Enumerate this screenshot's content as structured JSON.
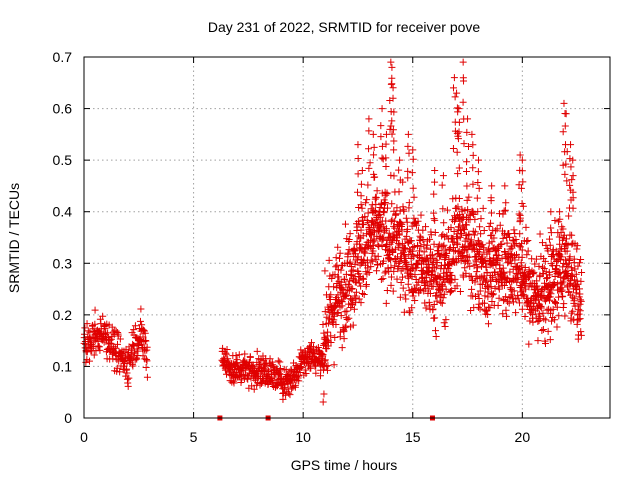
{
  "chart_data": {
    "type": "scatter",
    "title": "Day 231 of 2022, SRMTID for receiver pove",
    "xlabel": "GPS time / hours",
    "ylabel": "SRMTID / TECUs",
    "xlim": [
      0,
      24
    ],
    "ylim": [
      0,
      0.7
    ],
    "xticks": [
      0,
      5,
      10,
      15,
      20
    ],
    "yticks": [
      0,
      0.1,
      0.2,
      0.3,
      0.4,
      0.5,
      0.6,
      0.7
    ],
    "xtick_labels": [
      "0",
      "5",
      "10",
      "15",
      "20"
    ],
    "ytick_labels": [
      "0",
      "0.1",
      "0.2",
      "0.3",
      "0.4",
      "0.5",
      "0.6",
      "0.7"
    ],
    "grid": true,
    "marker": "+",
    "color": "#e00000",
    "zero_markers_x": [
      6.2,
      8.4,
      15.9
    ],
    "series": [
      {
        "name": "SRMTID",
        "segments": [
          {
            "start": 0.0,
            "end": 2.9,
            "step": 0.012,
            "anchors": [
              [
                0.0,
                0.15
              ],
              [
                0.3,
                0.14
              ],
              [
                0.6,
                0.16
              ],
              [
                0.9,
                0.17
              ],
              [
                1.3,
                0.14
              ],
              [
                1.7,
                0.12
              ],
              [
                2.0,
                0.1
              ],
              [
                2.3,
                0.15
              ],
              [
                2.6,
                0.16
              ],
              [
                2.9,
                0.12
              ]
            ],
            "spread": 0.035
          },
          {
            "start": 6.3,
            "end": 10.9,
            "step": 0.012,
            "anchors": [
              [
                6.3,
                0.12
              ],
              [
                6.8,
                0.09
              ],
              [
                7.3,
                0.1
              ],
              [
                7.8,
                0.09
              ],
              [
                8.3,
                0.09
              ],
              [
                8.8,
                0.08
              ],
              [
                9.2,
                0.07
              ],
              [
                9.6,
                0.08
              ],
              [
                10.0,
                0.12
              ],
              [
                10.5,
                0.12
              ],
              [
                10.9,
                0.11
              ]
            ],
            "spread": 0.028
          },
          {
            "start": 10.9,
            "end": 22.7,
            "step": 0.008,
            "anchors": [
              [
                10.9,
                0.14
              ],
              [
                11.4,
                0.22
              ],
              [
                11.9,
                0.26
              ],
              [
                12.4,
                0.3
              ],
              [
                12.9,
                0.33
              ],
              [
                13.4,
                0.36
              ],
              [
                13.9,
                0.34
              ],
              [
                14.4,
                0.33
              ],
              [
                14.9,
                0.31
              ],
              [
                15.4,
                0.3
              ],
              [
                15.9,
                0.28
              ],
              [
                16.4,
                0.27
              ],
              [
                16.9,
                0.34
              ],
              [
                17.4,
                0.36
              ],
              [
                17.9,
                0.3
              ],
              [
                18.4,
                0.28
              ],
              [
                18.9,
                0.3
              ],
              [
                19.4,
                0.3
              ],
              [
                19.9,
                0.29
              ],
              [
                20.4,
                0.24
              ],
              [
                20.9,
                0.24
              ],
              [
                21.4,
                0.26
              ],
              [
                21.9,
                0.3
              ],
              [
                22.4,
                0.26
              ],
              [
                22.7,
                0.22
              ]
            ],
            "spread": 0.085
          }
        ],
        "spikes": [
          [
            12.5,
            0.53
          ],
          [
            12.7,
            0.48
          ],
          [
            13.0,
            0.58
          ],
          [
            13.2,
            0.55
          ],
          [
            13.6,
            0.6
          ],
          [
            13.8,
            0.55
          ],
          [
            14.0,
            0.69
          ],
          [
            14.05,
            0.68
          ],
          [
            14.1,
            0.62
          ],
          [
            14.4,
            0.5
          ],
          [
            14.8,
            0.55
          ],
          [
            15.0,
            0.52
          ],
          [
            16.0,
            0.48
          ],
          [
            16.4,
            0.47
          ],
          [
            16.9,
            0.66
          ],
          [
            17.0,
            0.63
          ],
          [
            17.1,
            0.6
          ],
          [
            17.3,
            0.69
          ],
          [
            17.5,
            0.58
          ],
          [
            17.7,
            0.55
          ],
          [
            18.0,
            0.5
          ],
          [
            18.6,
            0.45
          ],
          [
            19.2,
            0.45
          ],
          [
            19.9,
            0.51
          ],
          [
            20.0,
            0.5
          ],
          [
            21.3,
            0.4
          ],
          [
            21.7,
            0.4
          ],
          [
            21.9,
            0.61
          ],
          [
            22.0,
            0.59
          ],
          [
            22.2,
            0.53
          ],
          [
            22.3,
            0.5
          ]
        ]
      }
    ]
  }
}
